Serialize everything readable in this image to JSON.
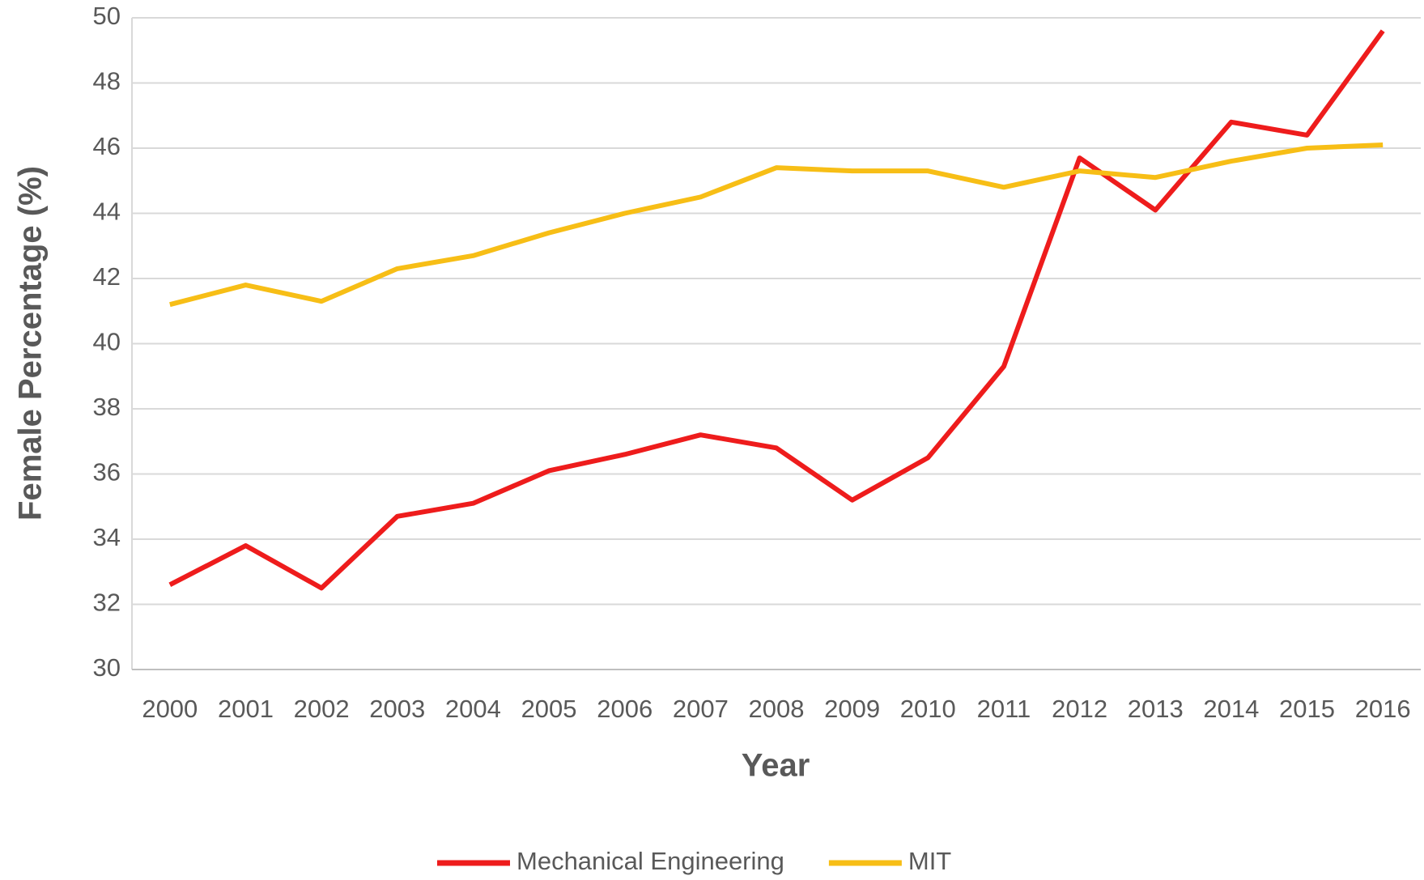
{
  "chart_data": {
    "type": "line",
    "x_label": "Year",
    "y_label": "Female Percentage (%)",
    "categories": [
      "2000",
      "2001",
      "2002",
      "2003",
      "2004",
      "2005",
      "2006",
      "2007",
      "2008",
      "2009",
      "2010",
      "2011",
      "2012",
      "2013",
      "2014",
      "2015",
      "2016"
    ],
    "series": [
      {
        "name": "Mechanical Engineering",
        "color": "#ee1c1c",
        "values": [
          32.6,
          33.8,
          32.5,
          34.7,
          35.1,
          36.1,
          36.6,
          37.2,
          36.8,
          35.2,
          36.5,
          39.3,
          45.7,
          44.1,
          46.8,
          46.4,
          49.6
        ]
      },
      {
        "name": "MIT",
        "color": "#f7be16",
        "values": [
          41.2,
          41.8,
          41.3,
          42.3,
          42.7,
          43.4,
          44.0,
          44.5,
          45.4,
          45.3,
          45.3,
          44.8,
          45.3,
          45.1,
          45.6,
          46.0,
          46.1
        ]
      }
    ],
    "ylim": [
      30,
      50
    ],
    "yticks": [
      30,
      32,
      34,
      36,
      38,
      40,
      42,
      44,
      46,
      48,
      50
    ],
    "grid": true,
    "legend": "bottom"
  }
}
